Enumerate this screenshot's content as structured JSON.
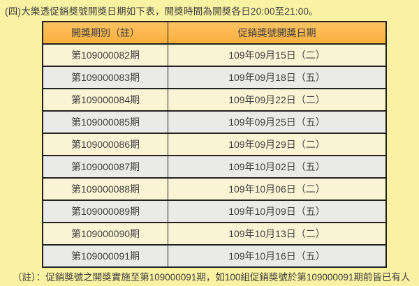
{
  "page": {
    "title": "(四)大樂透促銷獎號開獎日期如下表，開獎時間為開獎各日20:00至21:00。",
    "note": "（註）：促銷獎號之開獎實施至第109000091期，如100組促銷獎號於第109000091期前皆已有人"
  },
  "table": {
    "headers": [
      "開獎期別（註）",
      "促銷獎號開獎日期"
    ],
    "rows": [
      {
        "period": "第109000082期",
        "date": "109年09月15日（二）"
      },
      {
        "period": "第109000083期",
        "date": "109年09月18日（五）"
      },
      {
        "period": "第109000084期",
        "date": "109年09月22日（二）"
      },
      {
        "period": "第109000085期",
        "date": "109年09月25日（五）"
      },
      {
        "period": "第109000086期",
        "date": "109年09月29日（二）"
      },
      {
        "period": "第109000087期",
        "date": "109年10月02日（五）"
      },
      {
        "period": "第109000088期",
        "date": "109年10月06日（二）"
      },
      {
        "period": "第109000089期",
        "date": "109年10月09日（五）"
      },
      {
        "period": "第109000090期",
        "date": "109年10月13日（二）"
      },
      {
        "period": "第109000091期",
        "date": "109年10月16日（五）"
      }
    ]
  },
  "colors": {
    "page_background": "#FAF2A3",
    "header_top": "#FCC362",
    "header_bottom": "#F9B03E",
    "row_odd_background": "#FBF4D4",
    "row_even_background": "#EAEAE8",
    "border": "#222222",
    "text": "#3E3E3E"
  }
}
